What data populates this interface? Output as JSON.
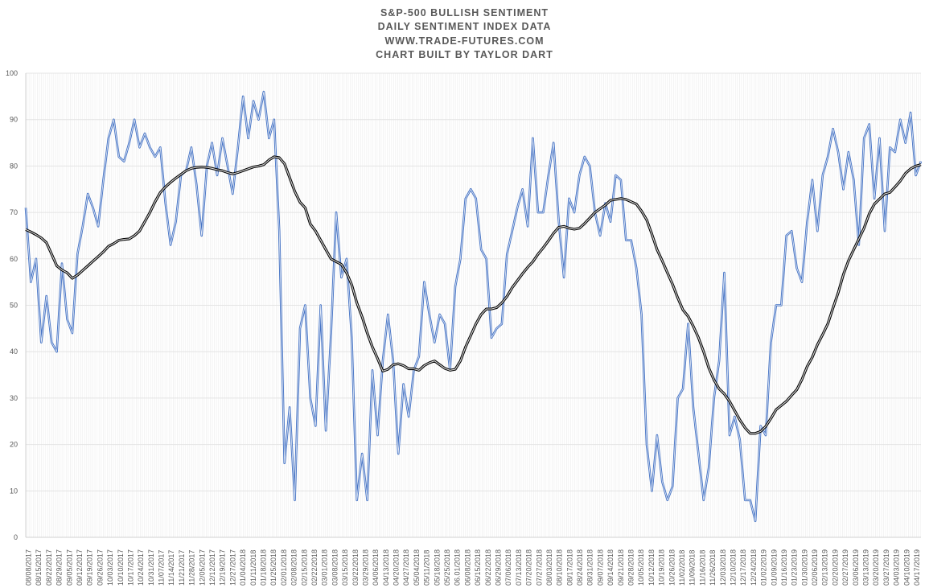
{
  "chart_data": {
    "type": "line",
    "title_lines": [
      "S&P-500 BULLISH SENTIMENT",
      "DAILY SENTIMENT INDEX DATA",
      "WWW.TRADE-FUTURES.COM",
      "CHART BUILT BY TAYLOR DART"
    ],
    "xlabel": "",
    "ylabel": "",
    "ylim": [
      0,
      100
    ],
    "yticks": [
      0,
      10,
      20,
      30,
      40,
      50,
      60,
      70,
      80,
      90,
      100
    ],
    "grid": true,
    "legend": "none",
    "x_tick_labels": [
      "08/08/2017",
      "08/15/2017",
      "08/22/2017",
      "08/29/2017",
      "09/05/2017",
      "09/12/2017",
      "09/19/2017",
      "09/26/2017",
      "10/03/2017",
      "10/10/2017",
      "10/17/2017",
      "10/24/2017",
      "10/31/2017",
      "11/07/2017",
      "11/14/2017",
      "11/21/2017",
      "11/28/2017",
      "12/05/2017",
      "12/12/2017",
      "12/19/2017",
      "12/27/2017",
      "01/04/2018",
      "01/11/2018",
      "01/18/2018",
      "01/25/2018",
      "02/01/2018",
      "02/08/2018",
      "02/15/2018",
      "02/22/2018",
      "03/01/2018",
      "03/08/2018",
      "03/15/2018",
      "03/22/2018",
      "03/29/2018",
      "04/06/2018",
      "04/13/2018",
      "04/20/2018",
      "04/27/2018",
      "05/04/2018",
      "05/11/2018",
      "05/18/2018",
      "05/25/2018",
      "06.01/2018",
      "06/08/2018",
      "06/15/2018",
      "06/22/2018",
      "06/29/2018",
      "07/06/2018",
      "07/13/2018",
      "07/20/2018",
      "07/27/2018",
      "08/03/2018",
      "08/10/2018",
      "08/17/2018",
      "08/24/2018",
      "08/31/2018",
      "09/07/2018",
      "09/14/2018",
      "09/21/2018",
      "09/28/2018",
      "10/05/2018",
      "10/12/2018",
      "10/19/2018",
      "10/26/2018",
      "11/02/2018",
      "11/09/2018",
      "11/16/2018",
      "11/26/2018",
      "12/03/2018",
      "12/10/2018",
      "12/17/2018",
      "12/24/2018",
      "01/02/2019",
      "01/09/2019",
      "01/16/2019",
      "01/23/2019",
      "01/30/2019",
      "02/06/2019",
      "02/13/2019",
      "02/20/2019",
      "02/27/2019",
      "03/06/2019",
      "03/13/2019",
      "03/20/2019",
      "03/27/2019",
      "04/03/2019",
      "04/10/2019",
      "04/17/2019"
    ],
    "x_range": [
      "08/08/2017",
      "04/17/2019"
    ],
    "series": [
      {
        "color": "#4472C4",
        "values": [
          71,
          55,
          60,
          42,
          52,
          42,
          40,
          59,
          47,
          44,
          61,
          67,
          74,
          71,
          67,
          77,
          86,
          90,
          82,
          81,
          85,
          90,
          84,
          87,
          84,
          82,
          84,
          72,
          63,
          68,
          78,
          79,
          84,
          76,
          65,
          80,
          85,
          78,
          86,
          80,
          74,
          84,
          95,
          86,
          94,
          90,
          96,
          86,
          90,
          66,
          16,
          28,
          8,
          45,
          50,
          30,
          24,
          50,
          23,
          44,
          70,
          56,
          60,
          43,
          8,
          18,
          8,
          36,
          22,
          38,
          48,
          38,
          18,
          33,
          26,
          36,
          39,
          55,
          48,
          42,
          48,
          46,
          36,
          54,
          60,
          73,
          75,
          73,
          62,
          60,
          43,
          45,
          46,
          61,
          66,
          71,
          75,
          67,
          86,
          70,
          70,
          78,
          85,
          68,
          56,
          73,
          70,
          78,
          82,
          80,
          70,
          65,
          72,
          68,
          78,
          77,
          64,
          64,
          58,
          48,
          20,
          10,
          22,
          12,
          8,
          11,
          30,
          32,
          46,
          28,
          18,
          8,
          15,
          30,
          38,
          57,
          22,
          26,
          21,
          8,
          8,
          3.5,
          24,
          22,
          42,
          50,
          50,
          65,
          66,
          58,
          55,
          68,
          77,
          66,
          78,
          82,
          88,
          83,
          75,
          83,
          77,
          63,
          86,
          89,
          73,
          86,
          66,
          84,
          83,
          90,
          85,
          91.5,
          78,
          81
        ]
      },
      {
        "color": "#000000",
        "values": [
          66.3,
          65.8,
          65.2,
          64.5,
          63.5,
          61,
          58.5,
          57.6,
          57,
          55.8,
          56.5,
          57.5,
          58.5,
          59.5,
          60.5,
          61.5,
          62.7,
          63.3,
          64,
          64.2,
          64.3,
          65,
          66,
          68,
          70,
          72.3,
          74.3,
          75.5,
          76.5,
          77.4,
          78.2,
          79,
          79.5,
          79.7,
          79.8,
          79.7,
          79.5,
          79.2,
          79,
          78.6,
          78.3,
          78.6,
          79,
          79.4,
          79.8,
          80,
          80.3,
          81.3,
          82,
          81.8,
          80.5,
          77.5,
          74.5,
          72.2,
          71,
          67.5,
          66,
          64,
          62,
          60,
          59.4,
          58.8,
          57,
          54.4,
          50.5,
          47.5,
          44,
          41,
          38.5,
          35.8,
          36.2,
          37.2,
          37.4,
          37,
          36.3,
          36.3,
          36,
          37,
          37.6,
          38,
          37.2,
          36.4,
          36,
          36.2,
          38,
          41,
          43.5,
          46,
          48,
          49.2,
          49.2,
          49.5,
          50.5,
          51.9,
          53.8,
          55.3,
          56.8,
          58.2,
          59.4,
          61,
          62.4,
          63.9,
          65.5,
          66.8,
          67,
          66.6,
          66.4,
          66.6,
          67.6,
          68.8,
          70,
          70.8,
          71.6,
          72.6,
          72.8,
          73,
          72.8,
          72.3,
          71.8,
          70.3,
          68.4,
          65.3,
          62,
          59.6,
          57,
          54.5,
          51.6,
          49,
          47.6,
          45.5,
          43,
          40,
          36.5,
          33.9,
          32,
          30.9,
          29.3,
          27.3,
          25.3,
          23.6,
          22.4,
          22.4,
          22.8,
          23.9,
          25.6,
          27.5,
          28.4,
          29.3,
          30.6,
          31.8,
          34,
          36.8,
          38.8,
          41.5,
          43.7,
          46,
          49.4,
          52.7,
          56.6,
          59.6,
          62,
          64.3,
          66.6,
          69.7,
          71.8,
          72.9,
          74,
          74.3,
          75.5,
          76.8,
          78.4,
          79.4,
          80,
          80.3
        ]
      }
    ]
  }
}
